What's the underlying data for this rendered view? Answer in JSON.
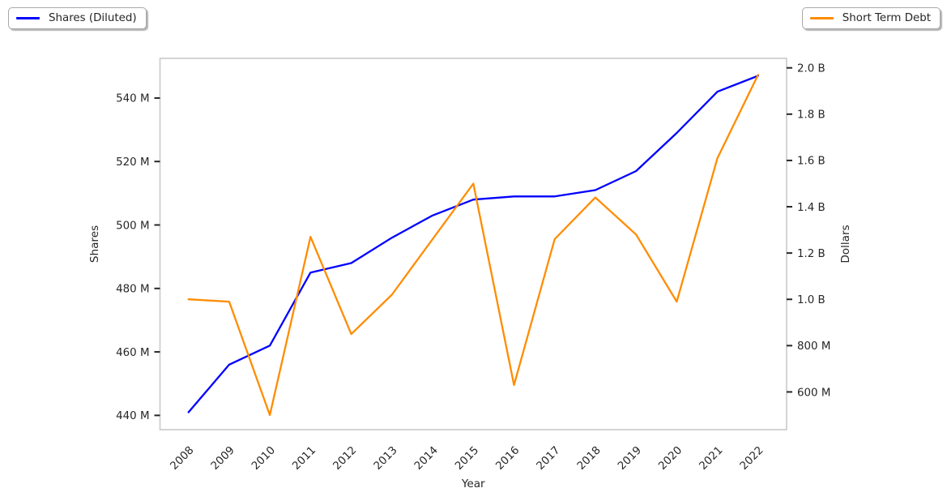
{
  "figure": {
    "background": "#ffffff",
    "text_color": "#262626",
    "plot_border_color": "#cccccc",
    "legends": [
      {
        "label": "Shares (Diluted)",
        "color": "#0000ff",
        "position": "top-left"
      },
      {
        "label": "Short Term Debt",
        "color": "#ff8c00",
        "position": "top-right"
      }
    ]
  },
  "chart_data": {
    "type": "line",
    "title": "",
    "grid": false,
    "x": [
      2008,
      2009,
      2010,
      2011,
      2012,
      2013,
      2014,
      2015,
      2016,
      2017,
      2018,
      2019,
      2020,
      2021,
      2022
    ],
    "x_axis": {
      "label": "Year",
      "tick_labels": [
        "2008",
        "2009",
        "2010",
        "2011",
        "2012",
        "2013",
        "2014",
        "2015",
        "2016",
        "2017",
        "2018",
        "2019",
        "2020",
        "2021",
        "2022"
      ],
      "tick_rotation_deg": 45,
      "range": [
        2007.3,
        2022.7
      ]
    },
    "left_axis": {
      "label": "Shares",
      "unit": "millions of shares",
      "tick_values": [
        440,
        460,
        480,
        500,
        520,
        540
      ],
      "tick_labels": [
        "440 M",
        "460 M",
        "480 M",
        "500 M",
        "520 M",
        "540 M"
      ],
      "range": [
        435.5,
        552.5
      ]
    },
    "right_axis": {
      "label": "Dollars",
      "unit": "billions of dollars",
      "tick_values": [
        0.6,
        0.8,
        1.0,
        1.2,
        1.4,
        1.6,
        1.8,
        2.0
      ],
      "tick_labels": [
        "600 M",
        "800 M",
        "1.0 B",
        "1.2 B",
        "1.4 B",
        "1.6 B",
        "1.8 B",
        "2.0 B"
      ],
      "range": [
        0.437,
        2.041
      ]
    },
    "series": [
      {
        "name": "Shares (Diluted)",
        "yaxis": "left",
        "color": "#0000ff",
        "values_unit": "millions",
        "values": [
          441,
          456,
          462,
          485,
          488,
          496,
          503,
          508,
          509,
          509,
          511,
          517,
          529,
          542,
          547
        ]
      },
      {
        "name": "Short Term Debt",
        "yaxis": "right",
        "color": "#ff8c00",
        "values_unit": "billions",
        "values": [
          1.0,
          0.99,
          0.5,
          1.27,
          0.85,
          1.02,
          1.26,
          1.5,
          0.63,
          1.26,
          1.44,
          1.28,
          0.99,
          1.61,
          1.97
        ]
      }
    ]
  }
}
